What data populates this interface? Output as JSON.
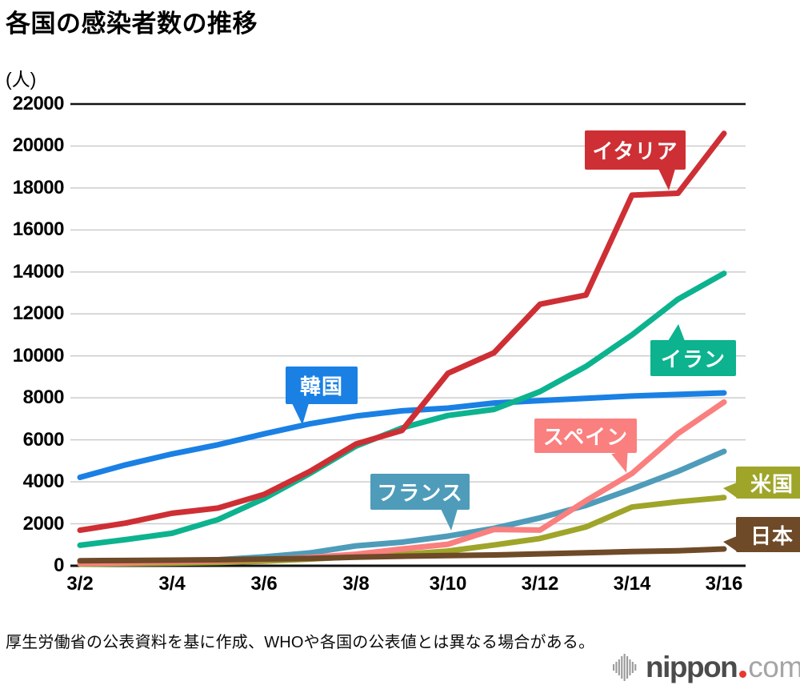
{
  "chart_data": {
    "type": "line",
    "title": "各国の感染者数の推移",
    "ylabel": "(人)",
    "xlabel": "",
    "x": [
      "3/2",
      "3/3",
      "3/4",
      "3/5",
      "3/6",
      "3/7",
      "3/8",
      "3/9",
      "3/10",
      "3/11",
      "3/12",
      "3/13",
      "3/14",
      "3/15",
      "3/16"
    ],
    "x_shown_ticks": [
      "3/2",
      "3/4",
      "3/6",
      "3/8",
      "3/10",
      "3/12",
      "3/14",
      "3/16"
    ],
    "yticks": [
      0,
      2000,
      4000,
      6000,
      8000,
      10000,
      12000,
      14000,
      16000,
      18000,
      20000,
      22000
    ],
    "ylim": [
      0,
      22000
    ],
    "grid": true,
    "legend_position": "inline-callouts",
    "series": [
      {
        "key": "usa",
        "name": "米国",
        "color": "#9ea529",
        "values": [
          75,
          100,
          124,
          158,
          221,
          319,
          435,
          541,
          700,
          990,
          1300,
          1850,
          2800,
          3050,
          3250
        ]
      },
      {
        "key": "france",
        "name": "フランス",
        "color": "#4e9cba",
        "values": [
          130,
          191,
          212,
          285,
          423,
          613,
          949,
          1126,
          1412,
          1784,
          2281,
          2876,
          3661,
          4499,
          5450
        ]
      },
      {
        "key": "spain",
        "name": "スペイン",
        "color": "#fa7f7f",
        "values": [
          114,
          151,
          198,
          237,
          300,
          400,
          550,
          800,
          1024,
          1730,
          1700,
          3100,
          4400,
          6300,
          7800
        ]
      },
      {
        "key": "japan",
        "name": "日本",
        "color": "#6e4a28",
        "values": [
          239,
          254,
          268,
          284,
          317,
          349,
          408,
          455,
          488,
          514,
          568,
          620,
          675,
          716,
          800
        ]
      },
      {
        "key": "korea",
        "name": "韓国",
        "color": "#1a80e4",
        "values": [
          4212,
          4812,
          5328,
          5766,
          6284,
          6767,
          7134,
          7382,
          7513,
          7755,
          7869,
          7979,
          8086,
          8162,
          8236
        ]
      },
      {
        "key": "iran",
        "name": "イラン",
        "color": "#0cb38e",
        "values": [
          978,
          1250,
          1550,
          2200,
          3200,
          4400,
          5700,
          6566,
          7161,
          7450,
          8300,
          9500,
          11000,
          12700,
          13930
        ]
      },
      {
        "key": "italy",
        "name": "イタリア",
        "color": "#ce2f34",
        "values": [
          1694,
          2036,
          2502,
          2750,
          3400,
          4500,
          5800,
          6450,
          9172,
          10149,
          12462,
          12900,
          17660,
          17750,
          20600
        ]
      }
    ]
  },
  "source_note": "厚生労働省の公表資料を基に作成、WHOや各国の公表値とは異なる場合がある。",
  "logo": {
    "brand": "nippon",
    "tld": "com",
    "dot_color": "#e8392f"
  }
}
